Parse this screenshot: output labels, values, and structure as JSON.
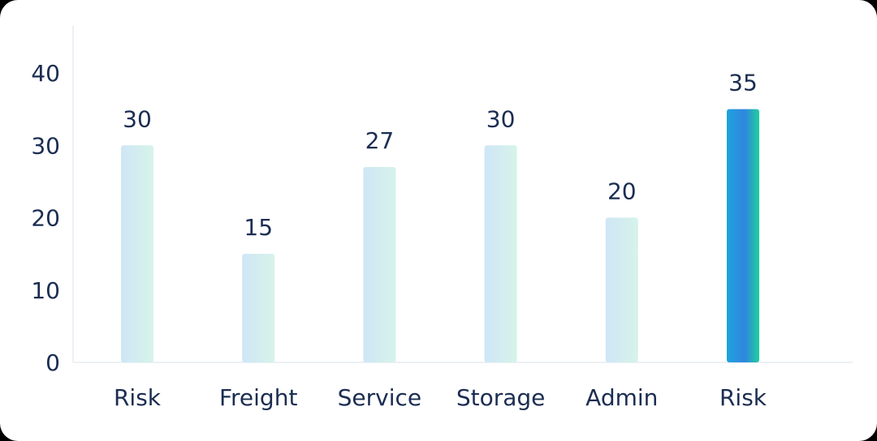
{
  "chart_data": {
    "type": "bar",
    "categories": [
      "Risk",
      "Freight",
      "Service",
      "Storage",
      "Admin",
      "Risk"
    ],
    "values": [
      30,
      15,
      27,
      30,
      20,
      35
    ],
    "ylim": [
      0,
      40
    ],
    "yticks": [
      0,
      10,
      20,
      30,
      40
    ],
    "highlight_index": 5,
    "grid": false,
    "colors": {
      "bar_light_start": "#cfe6f6",
      "bar_light_end": "#d6f3ea",
      "bar_highlight_start": "#1ea3dc",
      "bar_highlight_mid": "#2f86e0",
      "bar_highlight_end": "#1fcf9c",
      "axis": "#e6ecf2",
      "text": "#1b2d52"
    }
  }
}
